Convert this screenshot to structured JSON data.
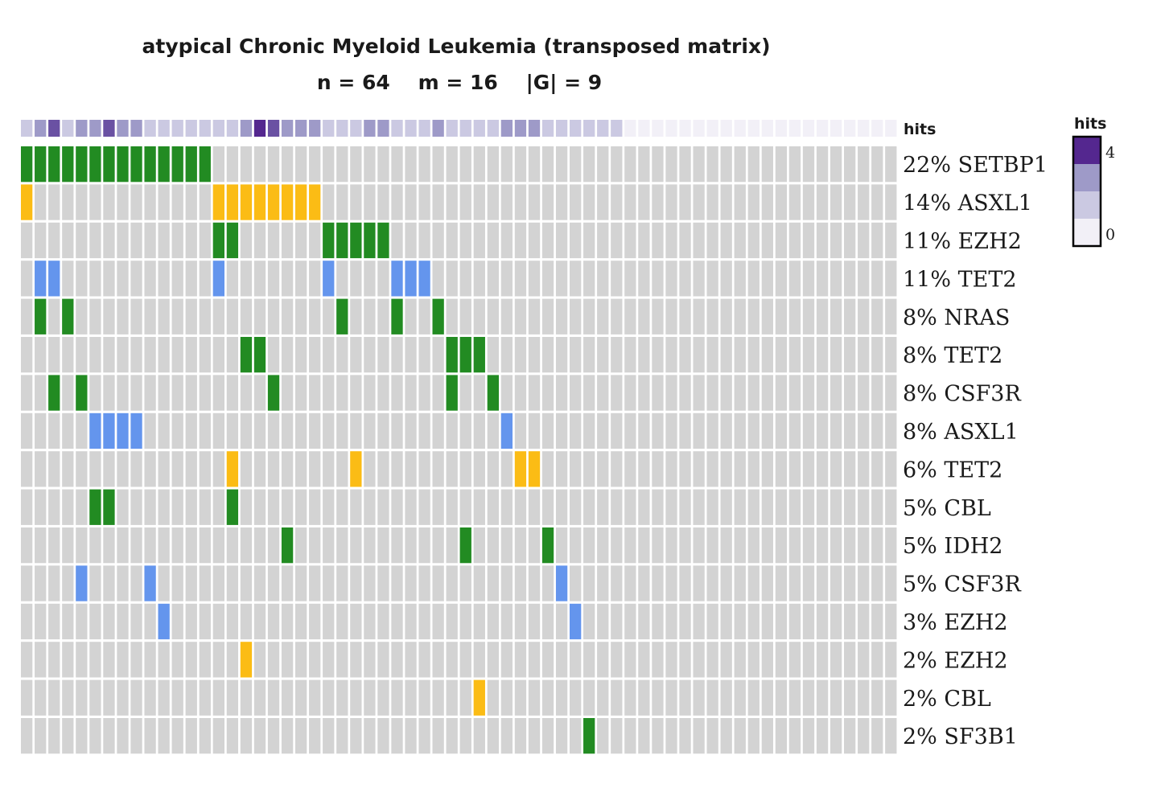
{
  "chart_data": {
    "type": "heatmap",
    "title": "atypical Chronic Myeloid Leukemia (transposed matrix)",
    "subtitle": "n = 64    m = 16    |G| = 9",
    "n": 64,
    "m": 16,
    "G": 9,
    "hits_label": "hits",
    "legend": {
      "title": "hits",
      "min": 0,
      "max": 4,
      "min_label": "0",
      "max_label": "4",
      "placement": "right"
    },
    "colors": {
      "background": "#d3d3d3",
      "green": "#228b22",
      "orange": "#fbbc15",
      "blue": "#6495ed",
      "hits_scale": [
        "#f2f0f7",
        "#cbc9e2",
        "#9e9ac8",
        "#6a51a3",
        "#54278f"
      ]
    },
    "rows": [
      {
        "pct": "22%",
        "gene": "SETBP1",
        "label": "22% SETBP1",
        "cells": {
          "0": "green",
          "1": "green",
          "2": "green",
          "3": "green",
          "4": "green",
          "5": "green",
          "6": "green",
          "7": "green",
          "8": "green",
          "9": "green",
          "10": "green",
          "11": "green",
          "12": "green",
          "13": "green"
        }
      },
      {
        "pct": "14%",
        "gene": "ASXL1",
        "label": "14% ASXL1",
        "cells": {
          "0": "orange",
          "14": "orange",
          "15": "orange",
          "16": "orange",
          "17": "orange",
          "18": "orange",
          "19": "orange",
          "20": "orange",
          "21": "orange"
        }
      },
      {
        "pct": "11%",
        "gene": "EZH2",
        "label": "11% EZH2",
        "cells": {
          "14": "green",
          "15": "green",
          "22": "green",
          "23": "green",
          "24": "green",
          "25": "green",
          "26": "green"
        }
      },
      {
        "pct": "11%",
        "gene": "TET2",
        "label": "11% TET2",
        "cells": {
          "1": "blue",
          "2": "blue",
          "14": "blue",
          "22": "blue",
          "27": "blue",
          "28": "blue",
          "29": "blue"
        }
      },
      {
        "pct": "8%",
        "gene": "NRAS",
        "label": "8% NRAS",
        "cells": {
          "1": "green",
          "3": "green",
          "23": "green",
          "27": "green",
          "30": "green"
        }
      },
      {
        "pct": "8%",
        "gene": "TET2",
        "label": "8% TET2",
        "cells": {
          "16": "green",
          "17": "green",
          "31": "green",
          "32": "green",
          "33": "green"
        }
      },
      {
        "pct": "8%",
        "gene": "CSF3R",
        "label": "8% CSF3R",
        "cells": {
          "2": "green",
          "4": "green",
          "18": "green",
          "31": "green",
          "34": "green"
        }
      },
      {
        "pct": "8%",
        "gene": "ASXL1",
        "label": "8% ASXL1",
        "cells": {
          "5": "blue",
          "6": "blue",
          "7": "blue",
          "8": "blue",
          "35": "blue"
        }
      },
      {
        "pct": "6%",
        "gene": "TET2",
        "label": "6% TET2",
        "cells": {
          "15": "orange",
          "24": "orange",
          "36": "orange",
          "37": "orange"
        }
      },
      {
        "pct": "5%",
        "gene": "CBL",
        "label": "5% CBL",
        "cells": {
          "5": "green",
          "6": "green",
          "15": "green"
        }
      },
      {
        "pct": "5%",
        "gene": "IDH2",
        "label": "5% IDH2",
        "cells": {
          "19": "green",
          "32": "green",
          "38": "green"
        }
      },
      {
        "pct": "5%",
        "gene": "CSF3R",
        "label": "5% CSF3R",
        "cells": {
          "4": "blue",
          "9": "blue",
          "39": "blue"
        }
      },
      {
        "pct": "3%",
        "gene": "EZH2",
        "label": "3% EZH2",
        "cells": {
          "10": "blue",
          "40": "blue"
        }
      },
      {
        "pct": "2%",
        "gene": "EZH2",
        "label": "2% EZH2",
        "cells": {
          "16": "orange"
        }
      },
      {
        "pct": "2%",
        "gene": "CBL",
        "label": "2% CBL",
        "cells": {
          "33": "orange"
        }
      },
      {
        "pct": "2%",
        "gene": "SF3B1",
        "label": "2% SF3B1",
        "cells": {
          "41": "green"
        }
      }
    ],
    "hits": [
      1,
      2,
      3,
      1,
      2,
      2,
      3,
      2,
      2,
      1,
      1,
      1,
      1,
      1,
      1,
      1,
      2,
      4,
      3,
      2,
      2,
      2,
      1,
      1,
      1,
      2,
      2,
      1,
      1,
      1,
      2,
      1,
      1,
      1,
      1,
      2,
      2,
      2,
      1,
      1,
      1,
      1,
      1,
      1,
      0,
      0,
      0,
      0,
      0,
      0,
      0,
      0,
      0,
      0,
      0,
      0,
      0,
      0,
      0,
      0,
      0,
      0,
      0,
      0
    ]
  }
}
